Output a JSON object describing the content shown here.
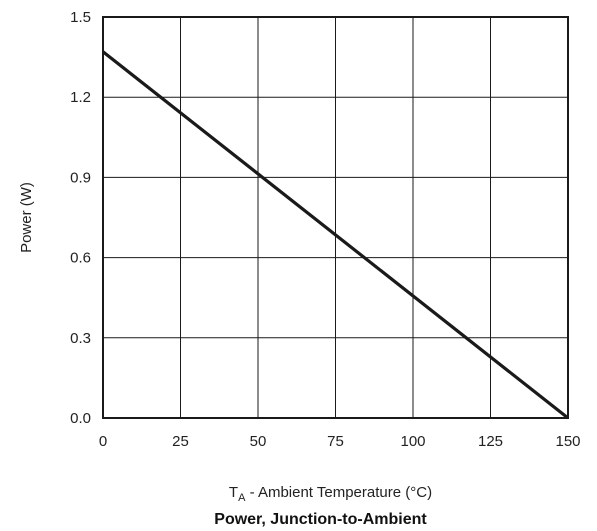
{
  "chart_data": {
    "type": "line",
    "title": "Power, Junction-to-Ambient",
    "xlabel_main": "T",
    "xlabel_sub": "A",
    "xlabel_rest": " - Ambient Temperature (°C)",
    "ylabel": "Power (W)",
    "xlim": [
      0,
      150
    ],
    "ylim": [
      0,
      1.5
    ],
    "x_ticks": [
      "0",
      "25",
      "50",
      "75",
      "100",
      "125",
      "150"
    ],
    "y_ticks": [
      "0.0",
      "0.3",
      "0.6",
      "0.9",
      "1.2",
      "1.5"
    ],
    "grid": true,
    "x_tick_values": [
      0,
      25,
      50,
      75,
      100,
      125,
      150
    ],
    "y_tick_values": [
      0,
      0.3,
      0.6,
      0.9,
      1.2,
      1.5
    ],
    "series": [
      {
        "x": [
          0,
          150
        ],
        "y": [
          1.37,
          0
        ],
        "color": "#1a1a1a"
      }
    ]
  }
}
